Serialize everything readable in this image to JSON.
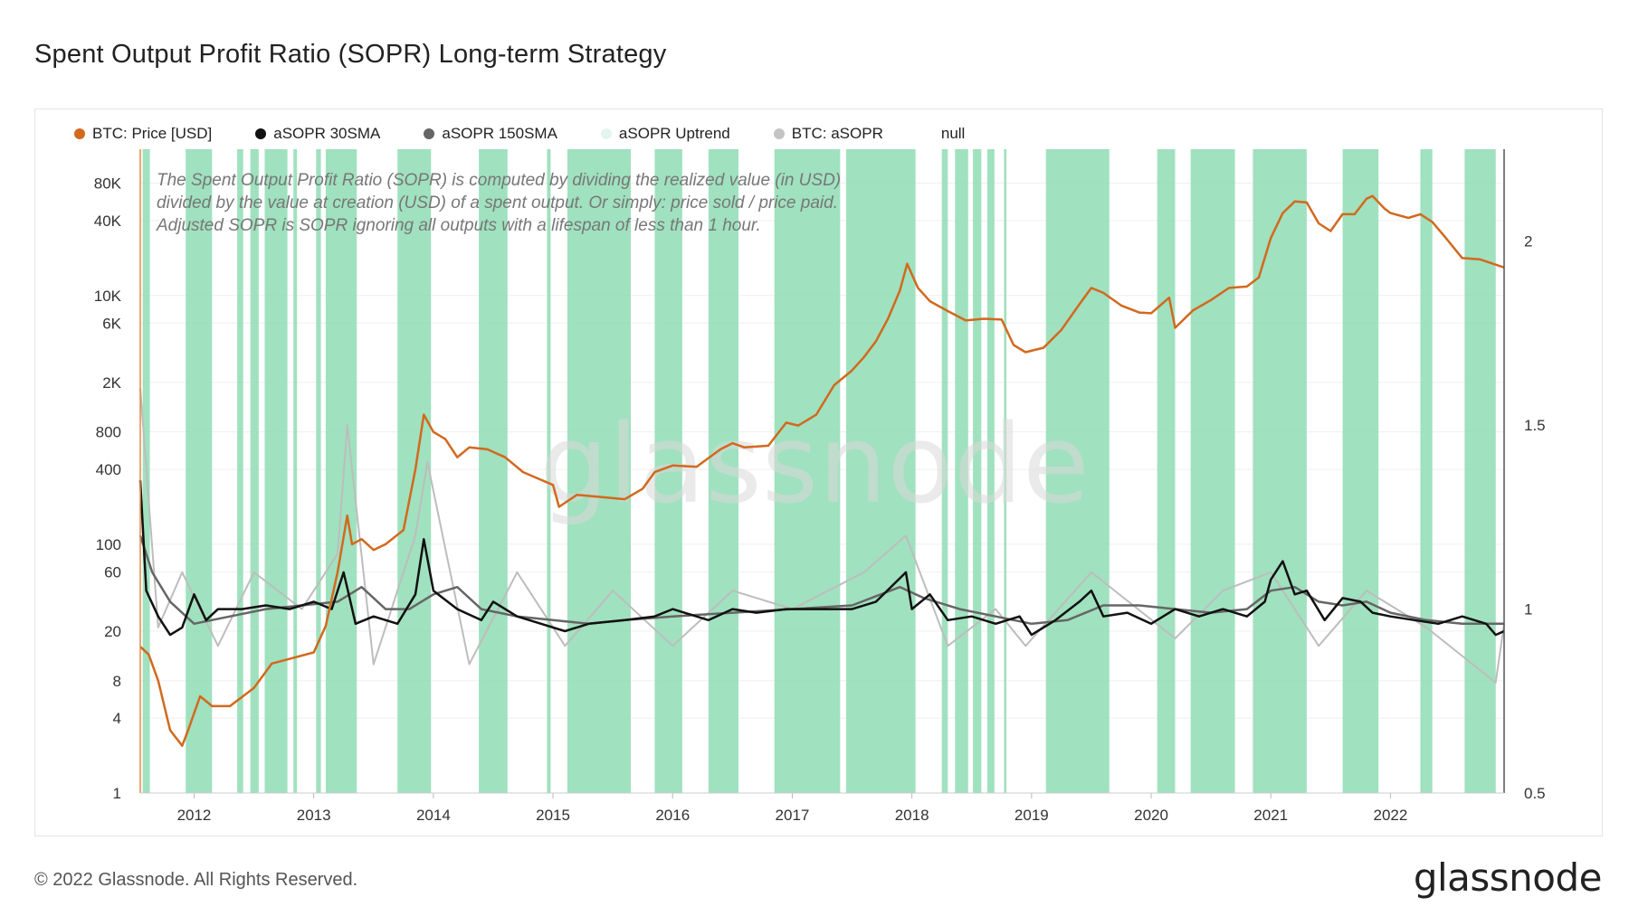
{
  "title": "Spent Output Profit Ratio (SOPR) Long-term Strategy",
  "legend": [
    {
      "label": "BTC: Price [USD]",
      "color": "#d2691e"
    },
    {
      "label": "aSOPR 30SMA",
      "color": "#111111"
    },
    {
      "label": "aSOPR 150SMA",
      "color": "#666666"
    },
    {
      "label": "aSOPR Uptrend",
      "color": "#e3f5ee"
    },
    {
      "label": "BTC: aSOPR",
      "color": "#c4c4c4"
    }
  ],
  "legend_null": "null",
  "annotation": [
    "The Spent Output Profit Ratio (SOPR) is computed by dividing the realized value (in USD)",
    "divided by the value at creation (USD) of a spent output. Or simply: price sold / price paid.",
    "Adjusted SOPR is SOPR ignoring all outputs with a lifespan of less than 1 hour."
  ],
  "watermark": "glassnode",
  "footer": {
    "copyright": "© 2022 Glassnode. All Rights Reserved.",
    "brand": "glassnode"
  },
  "chart_data": {
    "type": "line",
    "title": "Spent Output Profit Ratio (SOPR) Long-term Strategy",
    "x_range": [
      2011.55,
      2022.95
    ],
    "x_ticks": [
      "2012",
      "2013",
      "2014",
      "2015",
      "2016",
      "2017",
      "2018",
      "2019",
      "2020",
      "2021",
      "2022"
    ],
    "y_left": {
      "scale": "log",
      "range": [
        1,
        150000
      ],
      "ticks": [
        "80K",
        "40K",
        "10K",
        "6K",
        "2K",
        "800",
        "400",
        "100",
        "60",
        "20",
        "8",
        "4",
        "1"
      ],
      "tick_values": [
        80000,
        40000,
        10000,
        6000,
        2000,
        800,
        400,
        100,
        60,
        20,
        8,
        4,
        1
      ]
    },
    "y_right": {
      "scale": "linear",
      "range": [
        0.5,
        2.25
      ],
      "ticks": [
        "2",
        "1.5",
        "1",
        "0.5"
      ],
      "tick_values": [
        2,
        1.5,
        1,
        0.5
      ]
    },
    "series": [
      {
        "name": "BTC: Price [USD]",
        "axis": "left",
        "x": [
          2011.55,
          2011.62,
          2011.7,
          2011.8,
          2011.9,
          2011.95,
          2012.05,
          2012.15,
          2012.3,
          2012.5,
          2012.65,
          2012.8,
          2013.0,
          2013.1,
          2013.2,
          2013.28,
          2013.32,
          2013.4,
          2013.5,
          2013.6,
          2013.75,
          2013.85,
          2013.92,
          2014.0,
          2014.1,
          2014.2,
          2014.3,
          2014.45,
          2014.6,
          2014.75,
          2014.9,
          2015.0,
          2015.05,
          2015.2,
          2015.4,
          2015.6,
          2015.75,
          2015.85,
          2016.0,
          2016.2,
          2016.4,
          2016.5,
          2016.6,
          2016.8,
          2016.95,
          2017.05,
          2017.2,
          2017.35,
          2017.5,
          2017.6,
          2017.7,
          2017.8,
          2017.9,
          2017.96,
          2018.05,
          2018.15,
          2018.3,
          2018.45,
          2018.6,
          2018.75,
          2018.85,
          2018.95,
          2019.1,
          2019.25,
          2019.4,
          2019.5,
          2019.6,
          2019.75,
          2019.9,
          2020.0,
          2020.15,
          2020.2,
          2020.35,
          2020.5,
          2020.65,
          2020.8,
          2020.9,
          2021.0,
          2021.1,
          2021.2,
          2021.3,
          2021.4,
          2021.5,
          2021.6,
          2021.7,
          2021.8,
          2021.85,
          2021.95,
          2022.0,
          2022.15,
          2022.25,
          2022.35,
          2022.45,
          2022.6,
          2022.75,
          2022.95
        ],
        "y": [
          15,
          13,
          8,
          3.2,
          2.4,
          3.2,
          6,
          5,
          5,
          7,
          11,
          12,
          13.5,
          22,
          60,
          170,
          100,
          110,
          90,
          100,
          130,
          400,
          1100,
          800,
          700,
          500,
          600,
          580,
          500,
          380,
          330,
          300,
          200,
          250,
          240,
          230,
          280,
          380,
          430,
          420,
          580,
          650,
          600,
          620,
          950,
          900,
          1100,
          1900,
          2500,
          3200,
          4300,
          6500,
          11000,
          18000,
          11500,
          9000,
          7500,
          6300,
          6500,
          6400,
          4000,
          3500,
          3800,
          5300,
          8500,
          11500,
          10500,
          8300,
          7300,
          7200,
          9600,
          5500,
          7600,
          9200,
          11500,
          11800,
          14000,
          29000,
          46000,
          57000,
          56000,
          38000,
          33000,
          45000,
          45000,
          60000,
          63000,
          50000,
          46000,
          42000,
          45000,
          39000,
          30000,
          20000,
          19500,
          16800
        ]
      },
      {
        "name": "aSOPR 30SMA",
        "axis": "right",
        "x": [
          2011.55,
          2011.6,
          2011.7,
          2011.8,
          2011.9,
          2012.0,
          2012.1,
          2012.2,
          2012.4,
          2012.6,
          2012.8,
          2013.0,
          2013.15,
          2013.25,
          2013.35,
          2013.5,
          2013.7,
          2013.85,
          2013.92,
          2014.0,
          2014.2,
          2014.4,
          2014.5,
          2014.7,
          2014.9,
          2015.1,
          2015.3,
          2015.6,
          2015.85,
          2016.0,
          2016.3,
          2016.5,
          2016.7,
          2016.95,
          2017.1,
          2017.3,
          2017.5,
          2017.7,
          2017.95,
          2018.0,
          2018.15,
          2018.3,
          2018.5,
          2018.7,
          2018.9,
          2019.0,
          2019.2,
          2019.4,
          2019.5,
          2019.6,
          2019.8,
          2020.0,
          2020.2,
          2020.4,
          2020.6,
          2020.8,
          2020.95,
          2021.0,
          2021.1,
          2021.2,
          2021.3,
          2021.45,
          2021.6,
          2021.75,
          2021.85,
          2022.0,
          2022.2,
          2022.4,
          2022.6,
          2022.8,
          2022.88,
          2022.95
        ],
        "y": [
          1.35,
          1.05,
          0.98,
          0.93,
          0.95,
          1.04,
          0.97,
          1.0,
          1.0,
          1.01,
          1.0,
          1.02,
          1.0,
          1.1,
          0.96,
          0.98,
          0.96,
          1.04,
          1.19,
          1.05,
          1.0,
          0.97,
          1.02,
          0.98,
          0.96,
          0.94,
          0.96,
          0.97,
          0.98,
          1.0,
          0.97,
          1.0,
          0.99,
          1.0,
          1.0,
          1.0,
          1.0,
          1.02,
          1.1,
          1.0,
          1.04,
          0.97,
          0.98,
          0.96,
          0.98,
          0.93,
          0.97,
          1.02,
          1.05,
          0.98,
          0.99,
          0.96,
          1.0,
          0.98,
          1.0,
          0.98,
          1.02,
          1.08,
          1.13,
          1.04,
          1.05,
          0.97,
          1.03,
          1.02,
          0.99,
          0.98,
          0.97,
          0.96,
          0.98,
          0.96,
          0.93,
          0.94
        ]
      },
      {
        "name": "aSOPR 150SMA",
        "axis": "right",
        "x": [
          2011.55,
          2011.65,
          2011.8,
          2012.0,
          2012.3,
          2012.6,
          2012.9,
          2013.2,
          2013.4,
          2013.6,
          2013.8,
          2014.0,
          2014.2,
          2014.4,
          2014.7,
          2015.0,
          2015.3,
          2015.6,
          2016.0,
          2016.5,
          2017.0,
          2017.5,
          2017.9,
          2018.1,
          2018.4,
          2018.7,
          2019.0,
          2019.3,
          2019.6,
          2019.9,
          2020.2,
          2020.5,
          2020.8,
          2021.0,
          2021.2,
          2021.4,
          2021.6,
          2021.8,
          2022.0,
          2022.3,
          2022.6,
          2022.95
        ],
        "y": [
          1.2,
          1.1,
          1.02,
          0.96,
          0.98,
          1.0,
          1.01,
          1.02,
          1.06,
          1.0,
          1.0,
          1.04,
          1.06,
          1.0,
          0.98,
          0.97,
          0.96,
          0.97,
          0.98,
          0.99,
          1.0,
          1.01,
          1.06,
          1.03,
          1.0,
          0.98,
          0.96,
          0.97,
          1.01,
          1.01,
          1.0,
          0.99,
          1.0,
          1.05,
          1.06,
          1.02,
          1.01,
          1.02,
          0.99,
          0.97,
          0.96,
          0.96
        ]
      },
      {
        "name": "BTC: aSOPR",
        "axis": "right",
        "x": [
          2011.55,
          2011.7,
          2011.9,
          2012.2,
          2012.5,
          2012.9,
          2013.2,
          2013.28,
          2013.5,
          2013.85,
          2013.95,
          2014.3,
          2014.7,
          2015.1,
          2015.5,
          2016.0,
          2016.5,
          2017.0,
          2017.6,
          2017.95,
          2018.3,
          2018.7,
          2018.95,
          2019.5,
          2020.2,
          2020.6,
          2021.0,
          2021.4,
          2021.8,
          2022.3,
          2022.88,
          2022.95
        ],
        "y": [
          1.6,
          0.95,
          1.1,
          0.9,
          1.1,
          1.0,
          1.15,
          1.5,
          0.85,
          1.2,
          1.4,
          0.85,
          1.1,
          0.9,
          1.05,
          0.9,
          1.05,
          1.0,
          1.1,
          1.2,
          0.9,
          1.0,
          0.9,
          1.1,
          0.92,
          1.05,
          1.1,
          0.9,
          1.05,
          0.95,
          0.8,
          0.96
        ]
      }
    ],
    "uptrend_regions": [
      [
        2011.57,
        2011.63
      ],
      [
        2011.93,
        2012.15
      ],
      [
        2012.36,
        2012.41
      ],
      [
        2012.47,
        2012.54
      ],
      [
        2012.59,
        2012.78
      ],
      [
        2012.83,
        2012.86
      ],
      [
        2013.02,
        2013.06
      ],
      [
        2013.1,
        2013.36
      ],
      [
        2013.7,
        2013.98
      ],
      [
        2014.38,
        2014.62
      ],
      [
        2014.95,
        2014.98
      ],
      [
        2015.12,
        2015.65
      ],
      [
        2015.85,
        2016.08
      ],
      [
        2016.3,
        2016.55
      ],
      [
        2016.85,
        2017.4
      ],
      [
        2017.45,
        2018.03
      ],
      [
        2018.25,
        2018.3
      ],
      [
        2018.36,
        2018.47
      ],
      [
        2018.51,
        2018.58
      ],
      [
        2018.63,
        2018.69
      ],
      [
        2018.77,
        2018.79
      ],
      [
        2019.12,
        2019.65
      ],
      [
        2020.05,
        2020.2
      ],
      [
        2020.33,
        2020.7
      ],
      [
        2020.85,
        2021.3
      ],
      [
        2021.6,
        2021.9
      ],
      [
        2022.25,
        2022.35
      ],
      [
        2022.62,
        2022.88
      ]
    ]
  }
}
